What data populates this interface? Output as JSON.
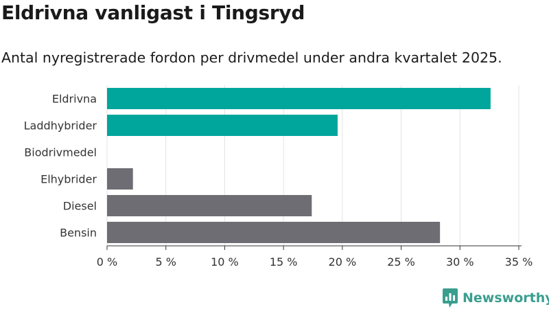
{
  "title": "Eldrivna vanligast i Tingsryd",
  "subtitle": "Antal nyregistrerade fordon per drivmedel under andra kvartalet 2025.",
  "brand": {
    "name": "Newsworthy",
    "color": "#3a9e8f"
  },
  "chart_data": {
    "type": "bar",
    "orientation": "horizontal",
    "title": "",
    "xlabel": "",
    "ylabel": "",
    "categories": [
      "Eldrivna",
      "Laddhybrider",
      "Biodrivmedel",
      "Elhybrider",
      "Diesel",
      "Bensin"
    ],
    "values": [
      32.6,
      19.6,
      0,
      2.2,
      17.4,
      28.3
    ],
    "colors": [
      "#00a59b",
      "#00a59b",
      "#00a59b",
      "#6e6d73",
      "#6e6d73",
      "#6e6d73"
    ],
    "xlim": [
      0,
      35
    ],
    "xticks": [
      "0 %",
      "5 %",
      "10 %",
      "15 %",
      "20 %",
      "25 %",
      "30 %",
      "35 %"
    ],
    "grid": "vertical",
    "legend": "none"
  }
}
